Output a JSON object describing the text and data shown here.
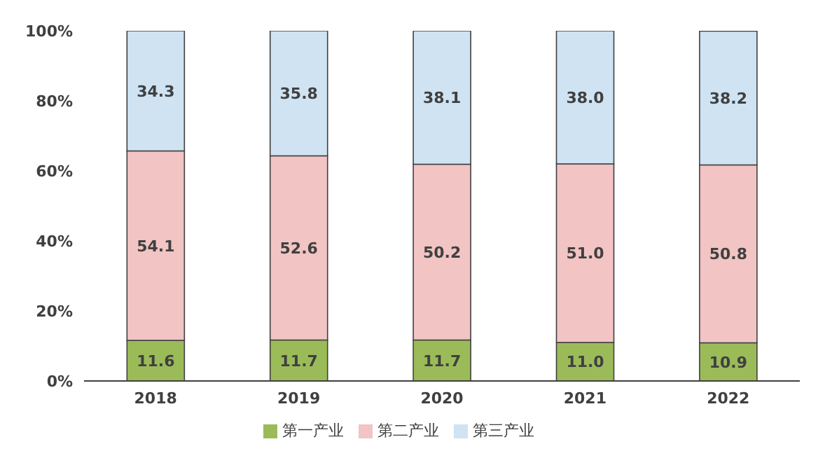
{
  "chart_data": {
    "type": "bar",
    "stacked": true,
    "categories": [
      "2018",
      "2019",
      "2020",
      "2021",
      "2022"
    ],
    "series": [
      {
        "name": "第一产业",
        "color": "#9bbb59",
        "values": [
          11.6,
          11.7,
          11.7,
          11.0,
          10.9
        ],
        "value_labels": [
          "11.6",
          "11.7",
          "11.7",
          "11.0",
          "10.9"
        ]
      },
      {
        "name": "第二产业",
        "color": "#f2c4c4",
        "values": [
          54.1,
          52.6,
          50.2,
          51.0,
          50.8
        ],
        "value_labels": [
          "54.1",
          "52.6",
          "50.2",
          "51.0",
          "50.8"
        ]
      },
      {
        "name": "第三产业",
        "color": "#cfe3f3",
        "values": [
          34.3,
          35.8,
          38.1,
          38.0,
          38.2
        ],
        "value_labels": [
          "34.3",
          "35.8",
          "38.1",
          "38.0",
          "38.2"
        ]
      }
    ],
    "ylim": [
      0,
      100
    ],
    "yticks": [
      {
        "value": 0,
        "label": "0%"
      },
      {
        "value": 20,
        "label": "20%"
      },
      {
        "value": 40,
        "label": "40%"
      },
      {
        "value": 60,
        "label": "60%"
      },
      {
        "value": 80,
        "label": "80%"
      },
      {
        "value": 100,
        "label": "100%"
      }
    ],
    "grid": false,
    "legend": "bottom"
  }
}
